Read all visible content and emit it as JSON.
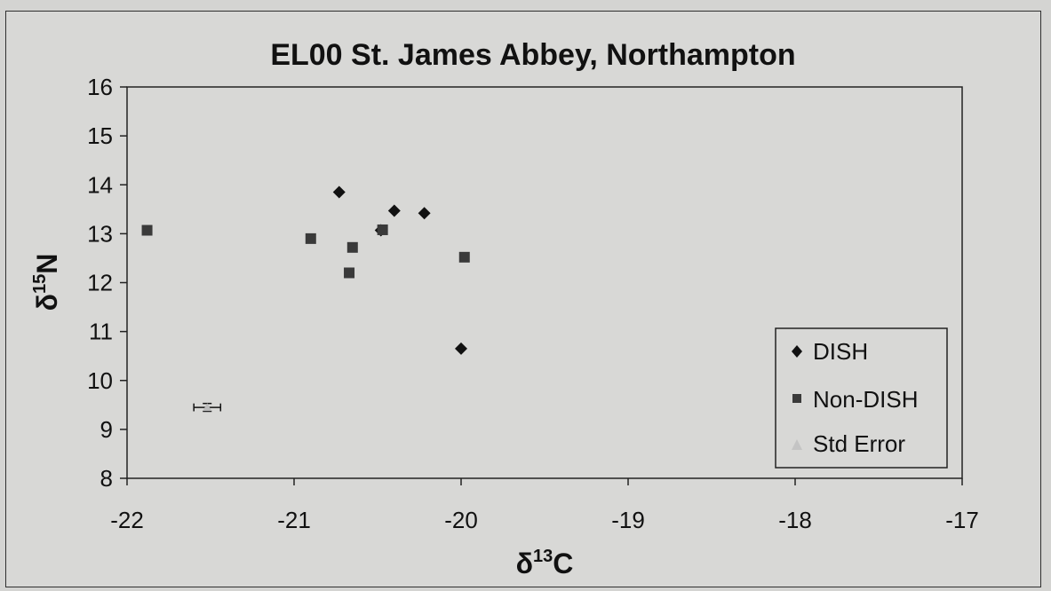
{
  "chart_data": {
    "type": "scatter",
    "title": "EL00 St. James Abbey, Northampton",
    "xlabel": {
      "base": "δ",
      "sup": "13",
      "rest": "C"
    },
    "ylabel": {
      "base": "δ",
      "sup": "15",
      "rest": "N"
    },
    "xlim": [
      -22,
      -17
    ],
    "ylim": [
      8,
      16
    ],
    "xticks": [
      -22,
      -21,
      -20,
      -19,
      -18,
      -17
    ],
    "yticks": [
      8,
      9,
      10,
      11,
      12,
      13,
      14,
      15,
      16
    ],
    "grid": false,
    "legend_position": "bottom-right",
    "series": [
      {
        "name": "DISH",
        "marker": "diamond",
        "color": "#111111",
        "points": [
          {
            "x": -20.73,
            "y": 13.85
          },
          {
            "x": -20.4,
            "y": 13.47
          },
          {
            "x": -20.22,
            "y": 13.42
          },
          {
            "x": -20.48,
            "y": 13.07
          },
          {
            "x": -20.0,
            "y": 10.65
          }
        ]
      },
      {
        "name": "Non-DISH",
        "marker": "square",
        "color": "#3a3a3a",
        "points": [
          {
            "x": -21.88,
            "y": 13.07
          },
          {
            "x": -20.9,
            "y": 12.9
          },
          {
            "x": -20.65,
            "y": 12.72
          },
          {
            "x": -20.67,
            "y": 12.2
          },
          {
            "x": -20.47,
            "y": 13.08
          },
          {
            "x": -19.98,
            "y": 12.52
          }
        ]
      },
      {
        "name": "Std Error",
        "marker": "triangle",
        "color": "#bbbbbb",
        "points": [
          {
            "x": -21.52,
            "y": 9.45
          }
        ],
        "xerr": 0.08,
        "yerr": 0.08
      }
    ]
  }
}
